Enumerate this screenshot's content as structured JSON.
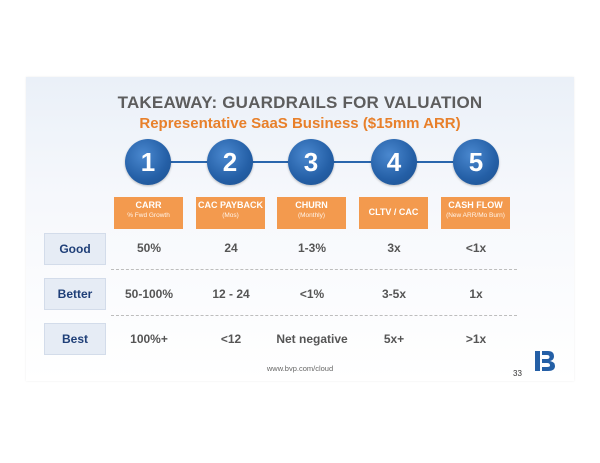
{
  "title": "TAKEAWAY: GUARDRAILS FOR VALUATION",
  "subtitle": "Representative SaaS Business ($15mm ARR)",
  "steps": [
    "1",
    "2",
    "3",
    "4",
    "5"
  ],
  "metrics": [
    {
      "label": "CARR",
      "sub": "% Fwd Growth"
    },
    {
      "label": "CAC PAYBACK",
      "sub": "(Mos)"
    },
    {
      "label": "CHURN",
      "sub": "(Monthly)"
    },
    {
      "label": "CLTV / CAC",
      "sub": ""
    },
    {
      "label": "CASH FLOW",
      "sub": "(New ARR/Mo Burn)"
    }
  ],
  "rows": [
    {
      "label": "Good",
      "values": [
        "50%",
        "24",
        "1-3%",
        "3x",
        "<1x"
      ]
    },
    {
      "label": "Better",
      "values": [
        "50-100%",
        "12 - 24",
        "<1%",
        "3-5x",
        "1x"
      ]
    },
    {
      "label": "Best",
      "values": [
        "100%+",
        "<12",
        "Net negative",
        "5x+",
        ">1x"
      ]
    }
  ],
  "footer_url": "www.bvp.com/cloud",
  "page_number": "33",
  "colors": {
    "accent_orange": "#f39a4e",
    "brand_blue": "#245fa6",
    "subtitle_orange": "#e8802b"
  },
  "logo": "bvp-logo-icon"
}
